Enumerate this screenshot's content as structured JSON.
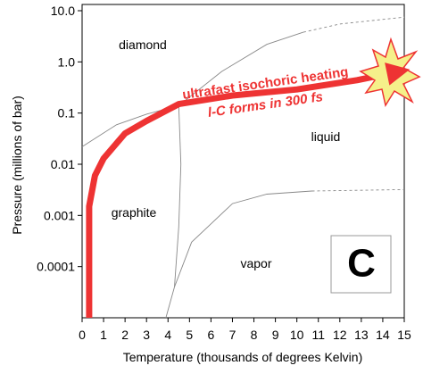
{
  "chart_data": {
    "type": "line",
    "x_label": "Temperature (thousands of degrees Kelvin)",
    "y_label": "Pressure (millions of bar)",
    "xlim": [
      0,
      15
    ],
    "xticks": [
      0,
      1,
      2,
      3,
      4,
      5,
      6,
      7,
      8,
      9,
      10,
      11,
      12,
      13,
      14,
      15
    ],
    "ylim": [
      1e-05,
      10
    ],
    "log_y": true,
    "yticks": [
      {
        "value": 10,
        "label": "10.0"
      },
      {
        "value": 1,
        "label": "1.0"
      },
      0.1,
      0.01,
      0.001,
      0.0001
    ],
    "series": [
      {
        "color": "#888888",
        "style": "solid",
        "x": [
          0,
          1.6,
          3,
          4.5,
          6.5,
          8.6,
          10.3
        ],
        "values": [
          0.022,
          0.059,
          0.095,
          0.14,
          0.65,
          2.2,
          3.8
        ]
      },
      {
        "color": "#888888",
        "style": "dashed",
        "x": [
          10.3,
          12,
          15
        ],
        "values": [
          3.8,
          5.5,
          7.5
        ]
      },
      {
        "color": "#888888",
        "style": "solid",
        "x": [
          4.5,
          4.6,
          4.5,
          4.3
        ],
        "values": [
          0.14,
          0.01,
          0.0006,
          4e-05
        ]
      },
      {
        "color": "#888888",
        "style": "solid",
        "x": [
          3.9,
          4.3,
          5.1,
          7,
          8.6,
          10.7
        ],
        "values": [
          1e-05,
          4e-05,
          0.0003,
          0.0017,
          0.0026,
          0.003
        ]
      },
      {
        "color": "#888888",
        "style": "dashed",
        "x": [
          10.7,
          15
        ],
        "values": [
          0.003,
          0.0032
        ]
      },
      {
        "color": "#ee3333",
        "style": "arrow",
        "x": [
          0.33,
          0.33,
          0.6,
          1,
          2,
          3,
          4.5,
          7,
          10,
          12.8,
          14.2
        ],
        "values": [
          1e-05,
          0.0015,
          0.006,
          0.013,
          0.04,
          0.07,
          0.15,
          0.22,
          0.29,
          0.44,
          0.58
        ]
      }
    ],
    "annotations": {
      "diamond": "diamond",
      "graphite": "graphite",
      "liquid": "liquid",
      "vapor": "vapor",
      "arrow_line1": "ultrafast isochoric heating",
      "arrow_line2": "l-C forms in 300 fs",
      "badge": "C"
    }
  }
}
